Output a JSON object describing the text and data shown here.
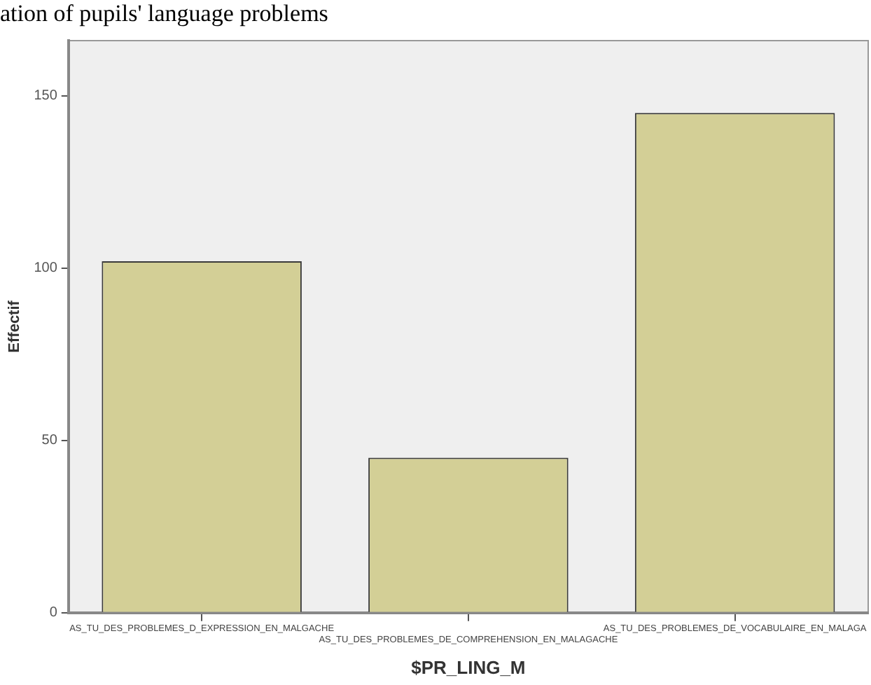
{
  "chart_data": {
    "type": "bar",
    "title": "ation of pupils' language problems",
    "xlabel": "$PR_LING_M",
    "ylabel": "Effectif",
    "categories": [
      "AS_TU_DES_PROBLEMES_D_EXPRESSION_EN_MALGACHE",
      "AS_TU_DES_PROBLEMES_DE_COMPREHENSION_EN_MALAGACHE",
      "AS_TU_DES_PROBLEMES_DE_VOCABULAIRE_EN_MALAGA"
    ],
    "values": [
      102,
      45,
      145
    ],
    "color": "#d3cf96",
    "ylim": [
      0,
      166
    ],
    "yticks": [
      0,
      50,
      100,
      150
    ],
    "grid": false,
    "legend": false
  }
}
